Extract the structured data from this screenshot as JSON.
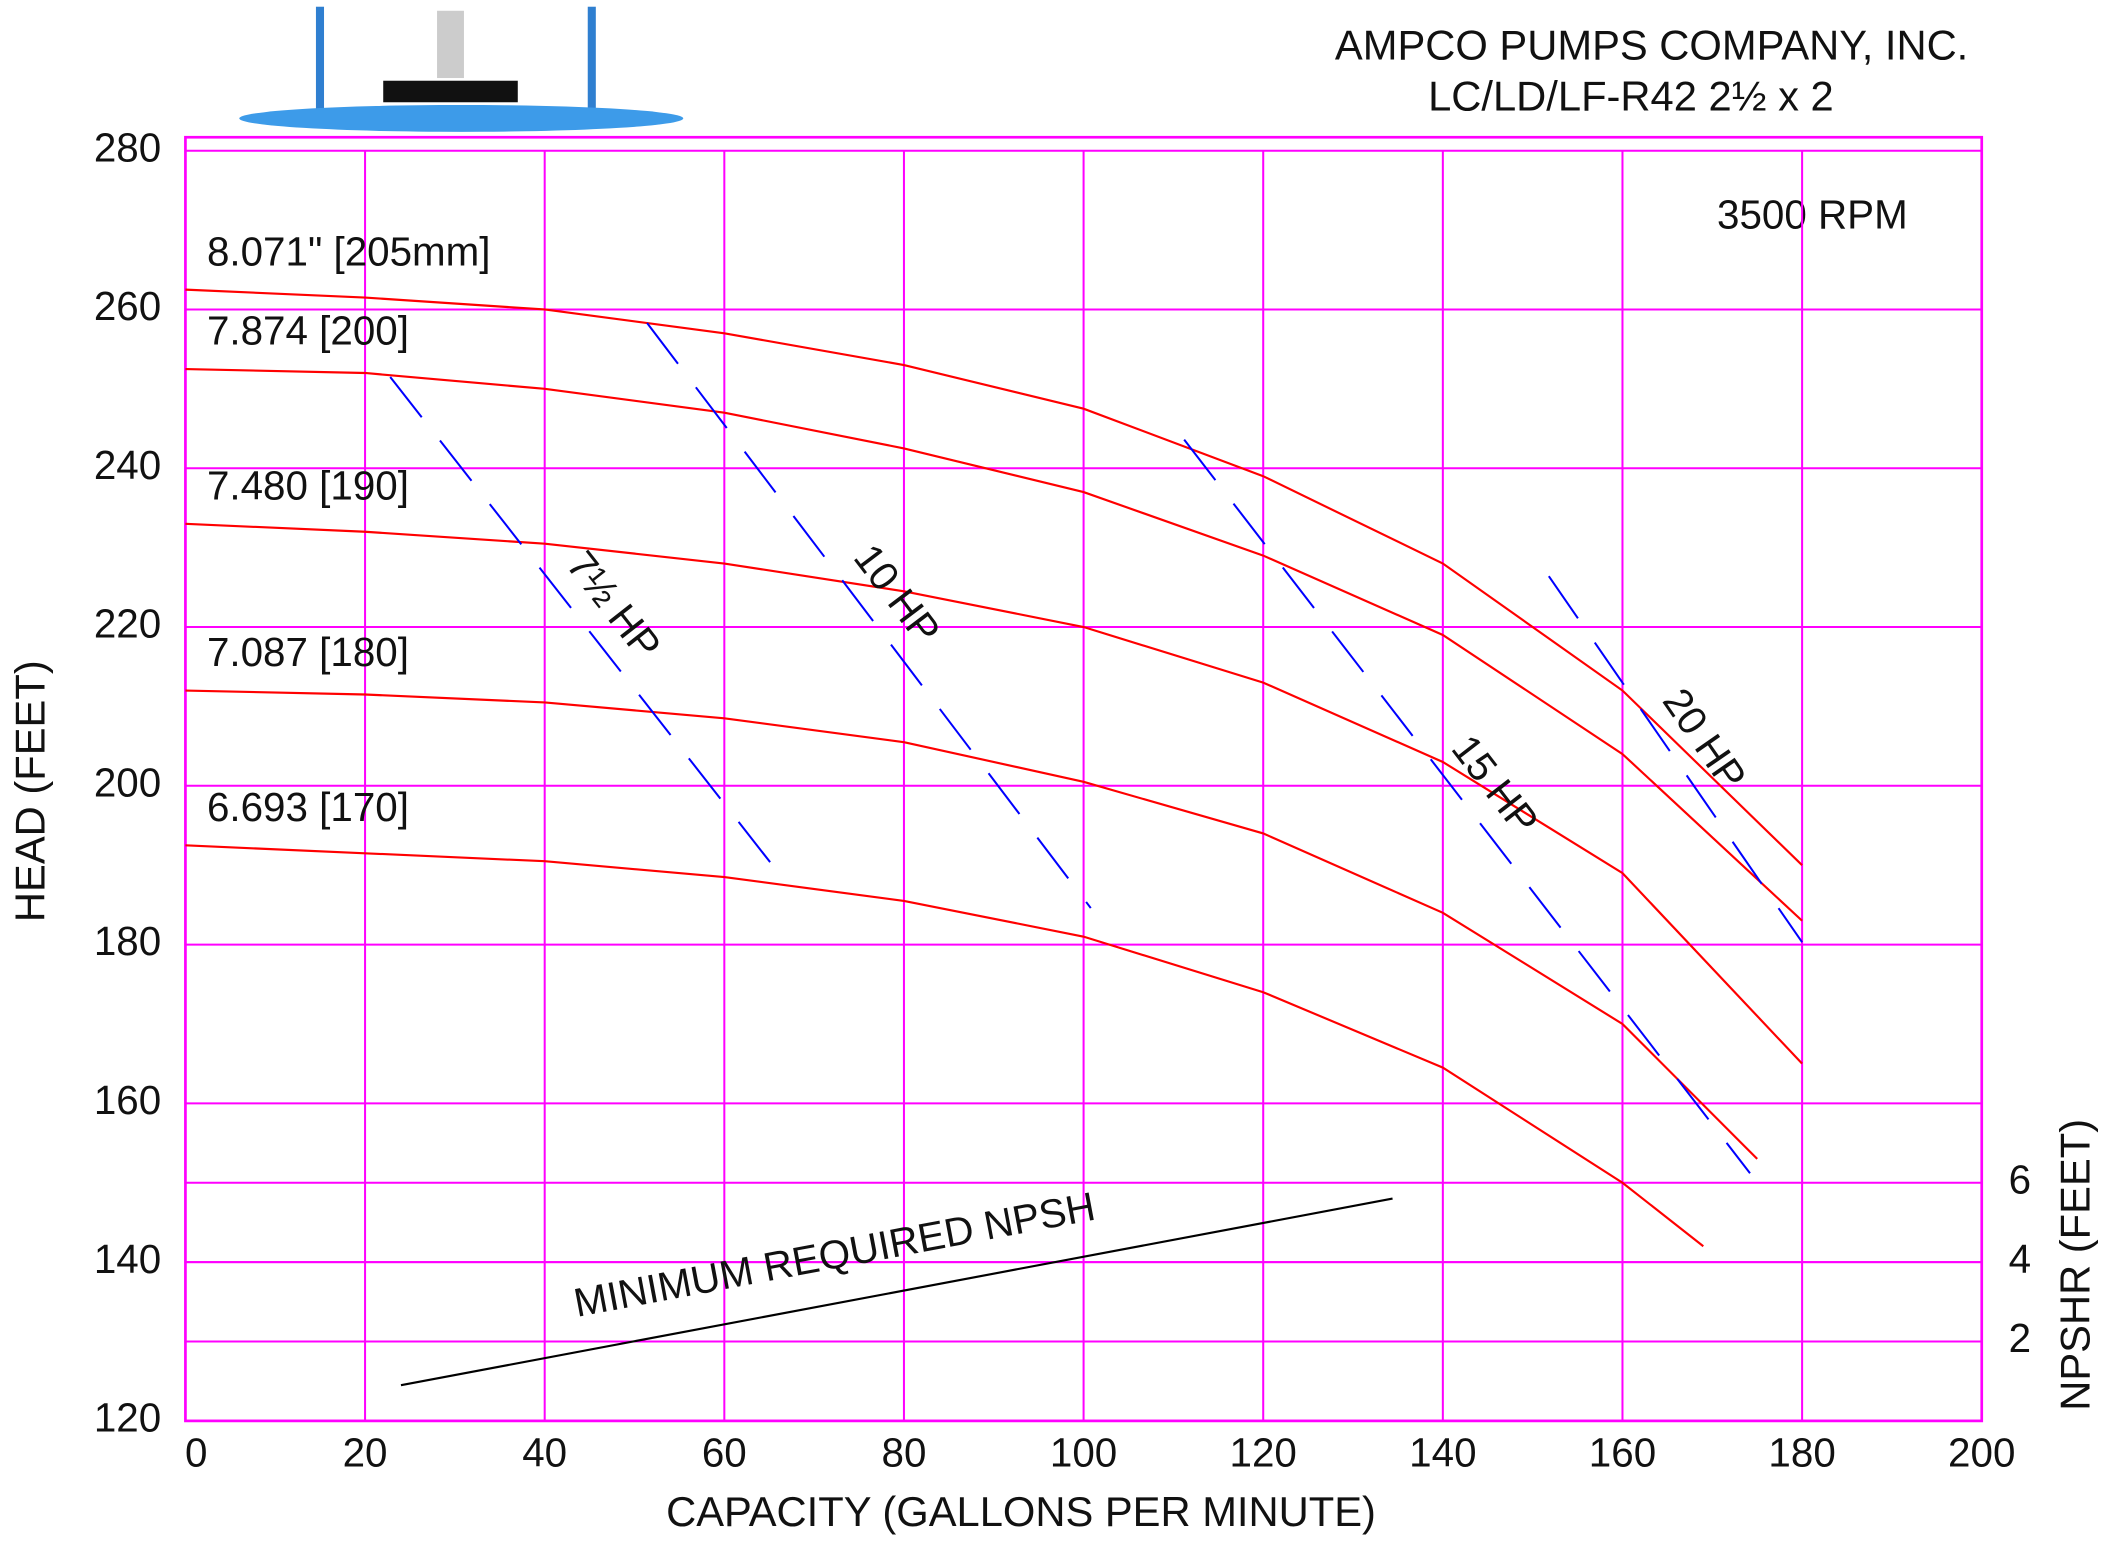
{
  "chart_data": {
    "type": "line",
    "title": "AMPCO PUMPS COMPANY, INC.",
    "subtitle": "LC/LD/LF-R42 2½ x 2",
    "annotation": "3500 RPM",
    "xlabel": "CAPACITY (GALLONS PER MINUTE)",
    "ylabel": "HEAD (FEET)",
    "y2label": "NPSHR (FEET)",
    "xlim": [
      0,
      200
    ],
    "xticks": [
      0,
      20,
      40,
      60,
      80,
      100,
      120,
      140,
      160,
      180,
      200
    ],
    "ylim": [
      120,
      280
    ],
    "yticks": [
      120,
      140,
      160,
      180,
      200,
      220,
      240,
      260,
      280
    ],
    "y2lim": [
      0,
      32
    ],
    "y2ticks": [
      2,
      4,
      6
    ],
    "grid": true,
    "grid_color": "#ff00ff",
    "series": [
      {
        "name": "8.071\" [205mm]",
        "color": "#ff0000",
        "x": [
          0,
          20,
          40,
          60,
          80,
          100,
          120,
          140,
          160,
          180
        ],
        "values": [
          262.5,
          261.5,
          260,
          257,
          253,
          247.5,
          239,
          228,
          212,
          190
        ]
      },
      {
        "name": "7.874 [200]",
        "color": "#ff0000",
        "x": [
          0,
          20,
          40,
          60,
          80,
          100,
          120,
          140,
          160,
          180
        ],
        "values": [
          252.5,
          252,
          250,
          247,
          242.5,
          237,
          229,
          219,
          204,
          183
        ]
      },
      {
        "name": "7.480 [190]",
        "color": "#ff0000",
        "x": [
          0,
          20,
          40,
          60,
          80,
          100,
          120,
          140,
          160,
          180
        ],
        "values": [
          233,
          232,
          230.5,
          228,
          224.5,
          220,
          213,
          203,
          189,
          165
        ]
      },
      {
        "name": "7.087 [180]",
        "color": "#ff0000",
        "x": [
          0,
          20,
          40,
          60,
          80,
          100,
          120,
          140,
          160,
          175
        ],
        "values": [
          212,
          211.5,
          210.5,
          208.5,
          205.5,
          200.5,
          194,
          184,
          170,
          153
        ]
      },
      {
        "name": "6.693 [170]",
        "color": "#ff0000",
        "x": [
          0,
          20,
          40,
          60,
          80,
          100,
          120,
          140,
          160,
          169
        ],
        "values": [
          192.5,
          191.5,
          190.5,
          188.5,
          185.5,
          181,
          174,
          164.5,
          150,
          142
        ]
      },
      {
        "name": "7½ HP",
        "color": "#0000ff",
        "dashed": true,
        "x": [
          22.8,
          66.4
        ],
        "values": [
          251.5,
          188.5
        ]
      },
      {
        "name": "10 HP",
        "color": "#0000ff",
        "dashed": true,
        "x": [
          51.4,
          100.8
        ],
        "values": [
          258.3,
          184.6
        ]
      },
      {
        "name": "15 HP",
        "color": "#0000ff",
        "dashed": true,
        "x": [
          111.2,
          174.2
        ],
        "values": [
          243.6,
          151.2
        ]
      },
      {
        "name": "20 HP",
        "color": "#0000ff",
        "dashed": true,
        "x": [
          151.8,
          180
        ],
        "values": [
          226.4,
          180.3
        ]
      },
      {
        "name": "MINIMUM REQUIRED NPSH",
        "color": "#000000",
        "axis": "y2",
        "x": [
          24,
          134.4
        ],
        "values": [
          0.9,
          5.6
        ]
      }
    ]
  }
}
